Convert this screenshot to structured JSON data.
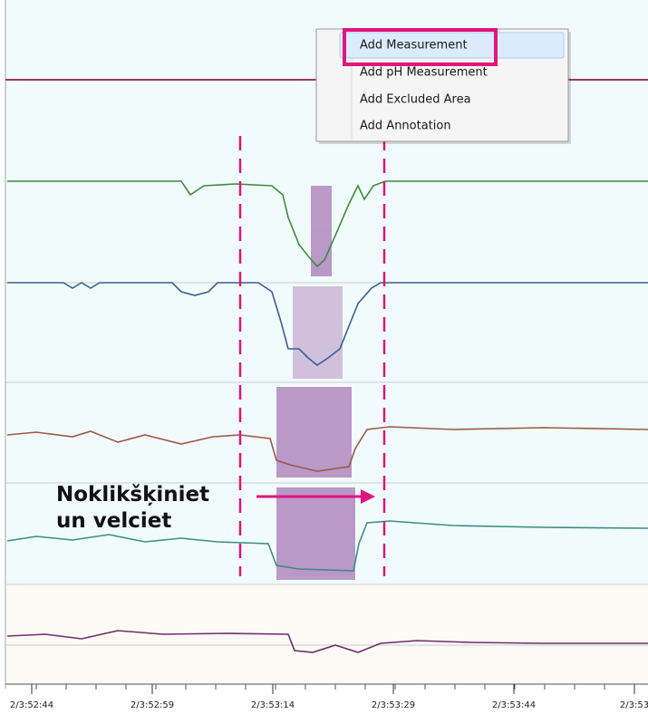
{
  "menu": {
    "items": [
      "Add Measurement",
      "Add pH Measurement",
      "Add Excluded Area",
      "Add Annotation"
    ]
  },
  "annotation": {
    "lines": [
      "Noklikšķiniet",
      "un velciet"
    ]
  },
  "time_axis": {
    "labels": [
      "2/3:52:44",
      "2/3:52:59",
      "2/3:53:14",
      "2/3:53:29",
      "2/3:53:44",
      "2/3:53"
    ]
  }
}
